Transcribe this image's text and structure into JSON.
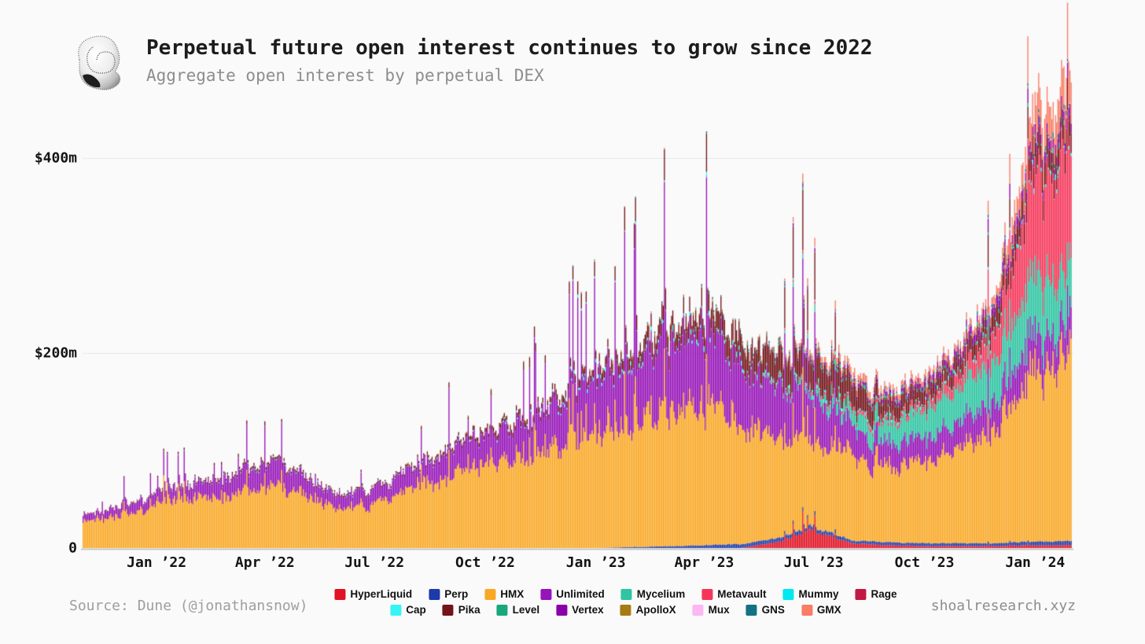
{
  "header": {
    "title": "Perpetual future open interest continues to grow since 2022",
    "subtitle": "Aggregate open interest by perpetual DEX",
    "logo": "snail-shell-dithered-logo"
  },
  "footer": {
    "source": "Source: Dune (@jonathansnow)",
    "watermark": "shoalresearch.xyz"
  },
  "colors": {
    "background": "#fafafa",
    "gridline": "#e6e6e6",
    "axis_line": "#b9b9b9",
    "title_text": "#1c1c1c",
    "muted_text": "#8d8d8d"
  },
  "chart_data": {
    "type": "bar",
    "subtype": "stacked-daily-bars",
    "title": "Aggregate open interest by perpetual DEX",
    "unit": "USD millions",
    "xlabel": "",
    "ylabel": "",
    "ylim": [
      0,
      500
    ],
    "grid": "horizontal",
    "legend_position": "bottom",
    "y_ticks": [
      {
        "label": "$400m",
        "value": 400
      },
      {
        "label": "$200m",
        "value": 200
      },
      {
        "label": "0",
        "value": 0
      }
    ],
    "x_start_month": "Nov 2021",
    "x_end_month": "Jan 2024",
    "month_days": [
      30,
      31,
      31,
      28,
      31,
      30,
      31,
      30,
      31,
      31,
      30,
      31,
      30,
      31,
      31,
      28,
      31,
      30,
      31,
      30,
      31,
      31,
      30,
      31,
      30,
      31,
      31
    ],
    "x_ticks": [
      {
        "label": "Jan ’22",
        "month_index": 2
      },
      {
        "label": "Apr ’22",
        "month_index": 5
      },
      {
        "label": "Jul ’22",
        "month_index": 8
      },
      {
        "label": "Oct ’22",
        "month_index": 11
      },
      {
        "label": "Jan ’23",
        "month_index": 14
      },
      {
        "label": "Apr ’23",
        "month_index": 17
      },
      {
        "label": "Jul ’23",
        "month_index": 20
      },
      {
        "label": "Oct ’23",
        "month_index": 23
      },
      {
        "label": "Jan ’24",
        "month_index": 26
      }
    ],
    "series_note": "monthly_anchors_musd are month-start open-interest levels estimated from the chart; daily bars fluctuate around interpolated values; stack order bottom-to-top equals legend order",
    "series": [
      {
        "label": "HyperLiquid",
        "color": "#e01223",
        "spike": 1.0,
        "minor": false,
        "monthly_anchors_musd": [
          0,
          0,
          0,
          0,
          0,
          0,
          0,
          0,
          0,
          0,
          0,
          0,
          0,
          0,
          0,
          0,
          0,
          0,
          0,
          6,
          18,
          5,
          3,
          2,
          2,
          2,
          3,
          3
        ]
      },
      {
        "label": "Perp",
        "color": "#1c3aaa",
        "spike": 0.15,
        "minor": false,
        "monthly_anchors_musd": [
          0,
          0,
          0,
          0,
          0,
          0,
          0,
          0,
          0,
          0,
          0,
          0,
          0,
          0,
          0,
          1,
          2,
          3,
          4,
          4,
          4,
          3,
          3,
          3,
          3,
          3,
          4,
          4
        ]
      },
      {
        "label": "HMX",
        "color": "#f9a825",
        "spike": 0.3,
        "minor": false,
        "monthly_anchors_musd": [
          26,
          33,
          44,
          50,
          55,
          62,
          57,
          40,
          46,
          60,
          74,
          85,
          90,
          105,
          120,
          130,
          140,
          148,
          126,
          100,
          90,
          88,
          80,
          85,
          100,
          120,
          175,
          195
        ]
      },
      {
        "label": "Unlimited",
        "color": "#9614b8",
        "spike": 1.0,
        "minor": false,
        "monthly_anchors_musd": [
          7,
          9,
          12,
          15,
          18,
          24,
          21,
          13,
          15,
          20,
          26,
          30,
          34,
          44,
          55,
          62,
          68,
          74,
          64,
          54,
          46,
          30,
          24,
          24,
          28,
          30,
          34,
          34
        ]
      },
      {
        "label": "Mycelium",
        "color": "#2ec5a2",
        "spike": 0.2,
        "minor": false,
        "monthly_anchors_musd": [
          0,
          0,
          0,
          0,
          0,
          0,
          0,
          0,
          0,
          0,
          0,
          0,
          0,
          0,
          0,
          0,
          0,
          0,
          0,
          2,
          6,
          14,
          22,
          28,
          38,
          45,
          60,
          52
        ]
      },
      {
        "label": "Metavault",
        "color": "#f5365a",
        "spike": 0.6,
        "minor": false,
        "monthly_anchors_musd": [
          0,
          0,
          0,
          0,
          0,
          0,
          0,
          0,
          0,
          0,
          0,
          0,
          0,
          0,
          0,
          0,
          0,
          0,
          0,
          1,
          2,
          3,
          4,
          6,
          14,
          30,
          100,
          115
        ]
      },
      {
        "label": "Mummy",
        "color": "#00e8f0",
        "spike": 0,
        "minor": true,
        "monthly_anchors_musd": [
          0,
          0,
          0,
          0,
          0,
          0,
          0,
          0,
          0,
          0,
          0,
          0,
          0,
          0,
          0.5,
          0.5,
          0.6,
          0.6,
          0.6,
          0.6,
          0.6,
          0.5,
          0.5,
          0.5,
          0.5,
          0.6,
          0.8,
          0.8
        ]
      },
      {
        "label": "Rage",
        "color": "#c21844",
        "spike": 0,
        "minor": true,
        "monthly_anchors_musd": [
          0,
          0,
          0,
          0,
          0,
          0,
          0,
          0,
          0,
          0,
          0,
          0,
          0,
          0,
          0,
          0.4,
          0.5,
          0.5,
          0.5,
          0.5,
          0.5,
          0.4,
          0.4,
          0.4,
          0.4,
          0.5,
          0.6,
          0.6
        ]
      },
      {
        "label": "Cap",
        "color": "#36f4f4",
        "spike": 0,
        "minor": true,
        "monthly_anchors_musd": [
          0,
          0,
          0.3,
          0.3,
          0.4,
          0.5,
          0.5,
          0.4,
          0.4,
          0.5,
          0.6,
          0.8,
          1,
          1.2,
          1.5,
          1.8,
          2,
          2,
          2,
          1.8,
          1.6,
          1.4,
          1.2,
          1.2,
          1.4,
          1.6,
          2,
          2
        ]
      },
      {
        "label": "Pika",
        "color": "#731418",
        "spike": 0.8,
        "minor": false,
        "monthly_anchors_musd": [
          0.6,
          0.8,
          1,
          1.5,
          2,
          2.5,
          2,
          1.5,
          1.5,
          2,
          3,
          4,
          5,
          6,
          8,
          12,
          15,
          18,
          22,
          27,
          30,
          25,
          15,
          14,
          15,
          16,
          22,
          20
        ]
      },
      {
        "label": "Level",
        "color": "#17a87c",
        "spike": 0,
        "minor": true,
        "monthly_anchors_musd": [
          0,
          0,
          0,
          0,
          0,
          0,
          0,
          0,
          0,
          0,
          0,
          0,
          0,
          0,
          0,
          0,
          0,
          0,
          0.5,
          1,
          1.5,
          1.5,
          1.5,
          1.5,
          1.5,
          1.8,
          2,
          2
        ]
      },
      {
        "label": "Vertex",
        "color": "#8a00a8",
        "spike": 0.9,
        "minor": false,
        "monthly_anchors_musd": [
          0,
          0,
          0,
          0,
          0,
          0,
          0,
          0,
          0,
          0,
          0,
          0,
          0,
          0,
          0,
          0,
          0,
          0,
          0,
          1,
          2,
          3,
          4,
          5,
          7,
          9,
          10,
          10
        ]
      },
      {
        "label": "ApolloX",
        "color": "#a87a14",
        "spike": 0,
        "minor": true,
        "monthly_anchors_musd": [
          0,
          0,
          0,
          0,
          0.2,
          0.3,
          0.3,
          0.3,
          0.3,
          0.4,
          0.5,
          0.6,
          0.7,
          0.8,
          0.8,
          0.9,
          1,
          1,
          1,
          0.9,
          0.8,
          0.8,
          0.8,
          0.8,
          0.8,
          0.9,
          1,
          1
        ]
      },
      {
        "label": "Mux",
        "color": "#fbb8f2",
        "spike": 0,
        "minor": true,
        "monthly_anchors_musd": [
          0,
          0,
          0,
          0,
          0,
          0,
          0,
          0,
          0,
          0,
          0,
          0,
          0,
          0,
          0.3,
          0.4,
          0.4,
          0.4,
          0.4,
          0.4,
          0.4,
          0.4,
          0.4,
          0.4,
          0.4,
          0.4,
          0.5,
          0.5
        ]
      },
      {
        "label": "GNS",
        "color": "#127284",
        "spike": 0,
        "minor": true,
        "monthly_anchors_musd": [
          0,
          0,
          0,
          0,
          0,
          0,
          0,
          0,
          0,
          0,
          0,
          0,
          0,
          0,
          0.5,
          0.6,
          0.8,
          1,
          1,
          1,
          1,
          1,
          1,
          1.2,
          1.4,
          1.6,
          2,
          2
        ]
      },
      {
        "label": "GMX",
        "color": "#f97c64",
        "spike": 1.0,
        "minor": false,
        "monthly_anchors_musd": [
          0,
          0,
          0,
          0,
          0,
          0,
          0,
          0,
          0,
          0,
          0,
          0,
          0,
          0,
          0,
          0,
          0,
          0,
          0,
          1,
          4,
          7,
          5,
          5,
          5,
          8,
          32,
          38
        ]
      }
    ]
  }
}
